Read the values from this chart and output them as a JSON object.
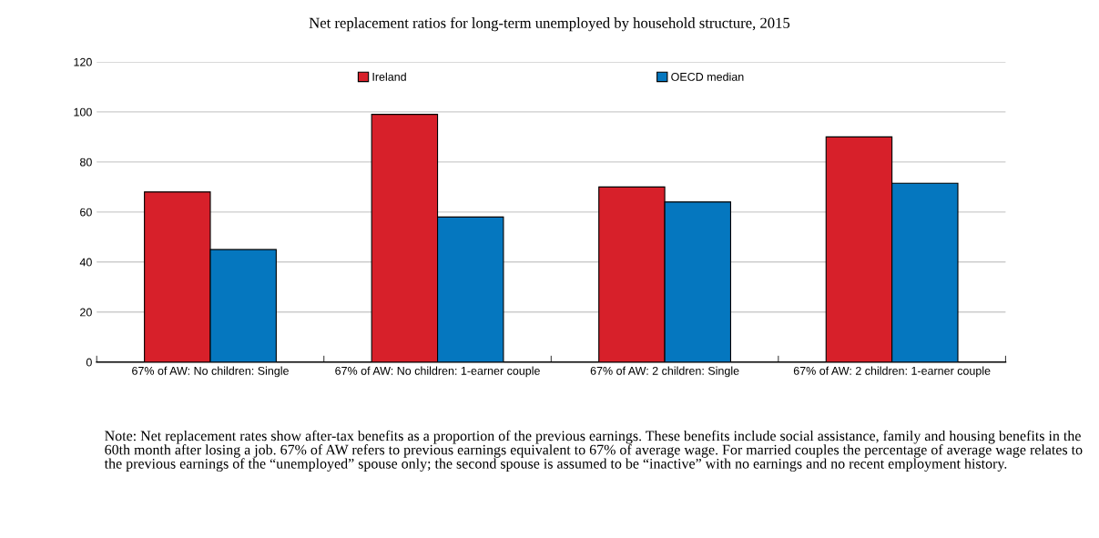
{
  "chart_data": {
    "type": "bar",
    "title": "Net replacement ratios for long-term unemployed by household structure, 2015",
    "categories": [
      "67% of AW: No children: Single",
      "67% of AW: No children: 1-earner couple",
      "67% of AW: 2 children: Single",
      "67% of AW: 2 children: 1-earner couple"
    ],
    "series": [
      {
        "name": "Ireland",
        "color": "#d7202a",
        "values": [
          68,
          99,
          70,
          90
        ]
      },
      {
        "name": "OECD median",
        "color": "#0577bf",
        "values": [
          45,
          58,
          64,
          71.5
        ]
      }
    ],
    "ylim": [
      0,
      120
    ],
    "yticks": [
      0,
      20,
      40,
      60,
      80,
      100,
      120
    ],
    "grid": "y",
    "legend": "top",
    "annotations": [
      "Note: Net replacement rates show after-tax benefits as a proportion of the previous earnings. These benefits include social assistance, family and housing benefits in the 60th month after losing a job. 67% of AW refers to previous earnings equivalent to 67% of average wage. For married couples the percentage of average wage relates to the previous earnings of the “unemployed” spouse only; the second spouse is assumed to be “inactive” with no earnings and no recent employment history."
    ]
  }
}
